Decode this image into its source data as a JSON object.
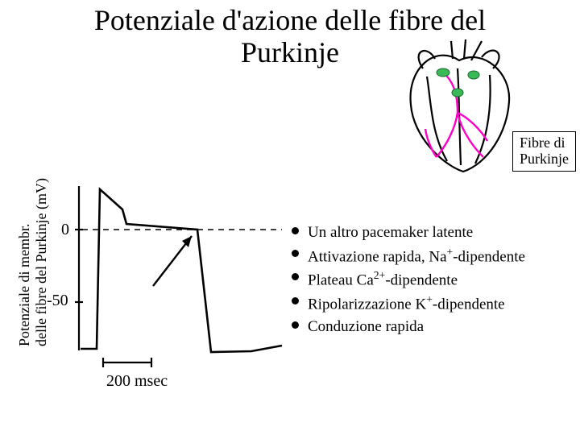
{
  "title_line1": "Potenziale d'azione delle fibre del",
  "title_line2": "Purkinje",
  "y_axis_label_line1": "Potenziale di membr.",
  "y_axis_label_line2": "delle fibre del Purkinje (mV)",
  "y_ticks": {
    "zero": "0",
    "neg50": "-50"
  },
  "x_scale_label": "200 msec",
  "heart_label_line1": "Fibre di",
  "heart_label_line2": "Purkinje",
  "bullets_html": [
    "Un altro pacemaker latente",
    "Attivazione rapida, Na<span class=\"sup\">+</span>-dipendente",
    "Plateau Ca<span class=\"sup\">2+</span>-dipendente",
    "Ripolarizzazione K<span class=\"sup\">+</span>-dipendente",
    "Conduzione rapida"
  ],
  "chart": {
    "type": "line",
    "background_color": "#ffffff",
    "stroke_color": "#000000",
    "stroke_width": 2,
    "ylim": [
      -90,
      30
    ],
    "y_ticks_values": [
      0,
      -50
    ],
    "threshold_value": 0,
    "threshold_stroke": "#000000",
    "threshold_dash": "6 5",
    "arrow_color": "#000000",
    "x_scale_units_msec": 200,
    "trace_points": [
      [
        0,
        -82
      ],
      [
        22,
        -82
      ],
      [
        26,
        28
      ],
      [
        60,
        14
      ],
      [
        65,
        4
      ],
      [
        160,
        0
      ],
      [
        178,
        -85
      ],
      [
        235,
        -84
      ],
      [
        280,
        -80
      ]
    ]
  },
  "heart_svg": {
    "outline_color": "#000000",
    "fill": "#ffffff",
    "node_fill": "#39b957",
    "fiber_stroke": "#ff00c8",
    "fiber_width": 2.2
  },
  "layout": {
    "title_fontsize": 36,
    "axis_label_fontsize": 18,
    "tick_fontsize": 20,
    "bullet_fontsize": 19,
    "heart_label_fontsize": 18
  }
}
